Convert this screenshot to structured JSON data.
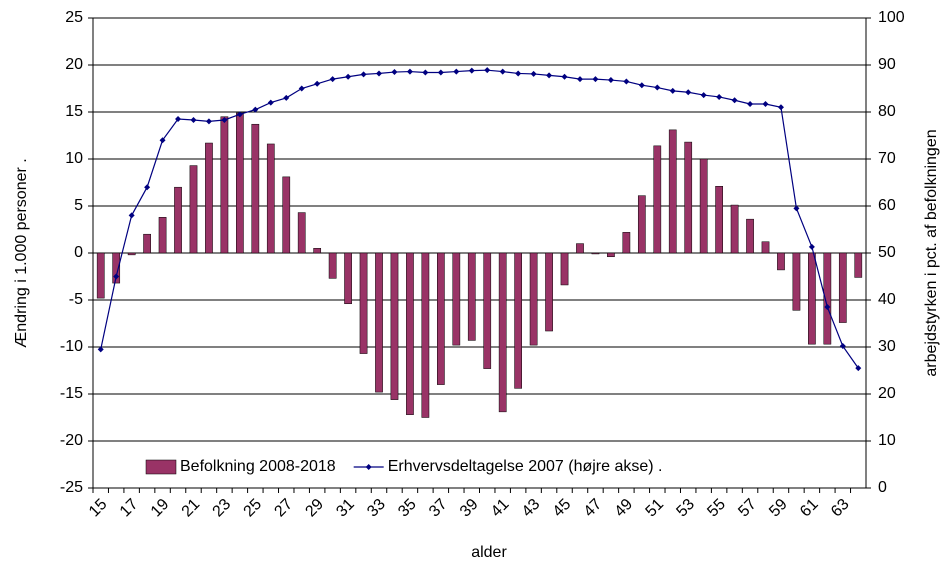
{
  "chart_data": {
    "type": "bar_line",
    "xlabel": "alder",
    "ylabel": "Ændring i 1.000 personer .",
    "y2label": "arbejdstyrken i pct. af befolkningen",
    "categories": [
      "15",
      null,
      "17",
      null,
      "19",
      null,
      "21",
      null,
      "23",
      null,
      "25",
      null,
      "27",
      null,
      "29",
      null,
      "31",
      null,
      "33",
      null,
      "35",
      null,
      "37",
      null,
      "39",
      null,
      "41",
      null,
      "43",
      null,
      "45",
      null,
      "47",
      null,
      "49",
      null,
      "51",
      null,
      "53",
      null,
      "55",
      null,
      "57",
      null,
      "59",
      null,
      "61",
      null,
      "63",
      null
    ],
    "series": [
      {
        "name": "Befolkning 2008-2018",
        "type": "bar",
        "color": "#993366",
        "axis": "y",
        "values": [
          -4.8,
          -3.2,
          -0.2,
          2.0,
          3.8,
          7.0,
          9.3,
          11.7,
          14.5,
          14.9,
          13.7,
          11.6,
          8.1,
          4.3,
          0.5,
          -2.7,
          -5.4,
          -10.7,
          -14.8,
          -15.6,
          -17.2,
          -17.5,
          -14.0,
          -9.8,
          -9.3,
          -12.3,
          -16.9,
          -14.4,
          -9.8,
          -8.3,
          -3.4,
          1.0,
          -0.1,
          -0.4,
          2.2,
          6.1,
          11.4,
          13.1,
          11.8,
          10.0,
          7.1,
          5.1,
          3.6,
          1.2,
          -1.8,
          -6.1,
          -9.7,
          -9.7,
          -7.4,
          -2.6
        ]
      },
      {
        "name": "Erhvervsdeltagelse 2007 (højre akse) .",
        "type": "line",
        "color": "#000080",
        "axis": "y2",
        "values": [
          29.5,
          45,
          58,
          64,
          74,
          78.5,
          78.3,
          78,
          78.3,
          79.5,
          80.5,
          82,
          83,
          85,
          86,
          87,
          87.5,
          88,
          88.2,
          88.5,
          88.6,
          88.4,
          88.4,
          88.6,
          88.8,
          88.9,
          88.6,
          88.2,
          88.1,
          87.8,
          87.5,
          87,
          87,
          86.8,
          86.5,
          85.7,
          85.2,
          84.5,
          84.2,
          83.6,
          83.2,
          82.5,
          81.7,
          81.7,
          81,
          59.5,
          51.3,
          38.5,
          30.2,
          25.5
        ]
      }
    ],
    "ylim": [
      -25,
      25
    ],
    "yticks": [
      -25,
      -20,
      -15,
      -10,
      -5,
      0,
      5,
      10,
      15,
      20,
      25
    ],
    "y2lim": [
      0,
      100
    ],
    "y2ticks": [
      0,
      10,
      20,
      30,
      40,
      50,
      60,
      70,
      80,
      90,
      100
    ],
    "grid": true,
    "legend": "bottom"
  }
}
